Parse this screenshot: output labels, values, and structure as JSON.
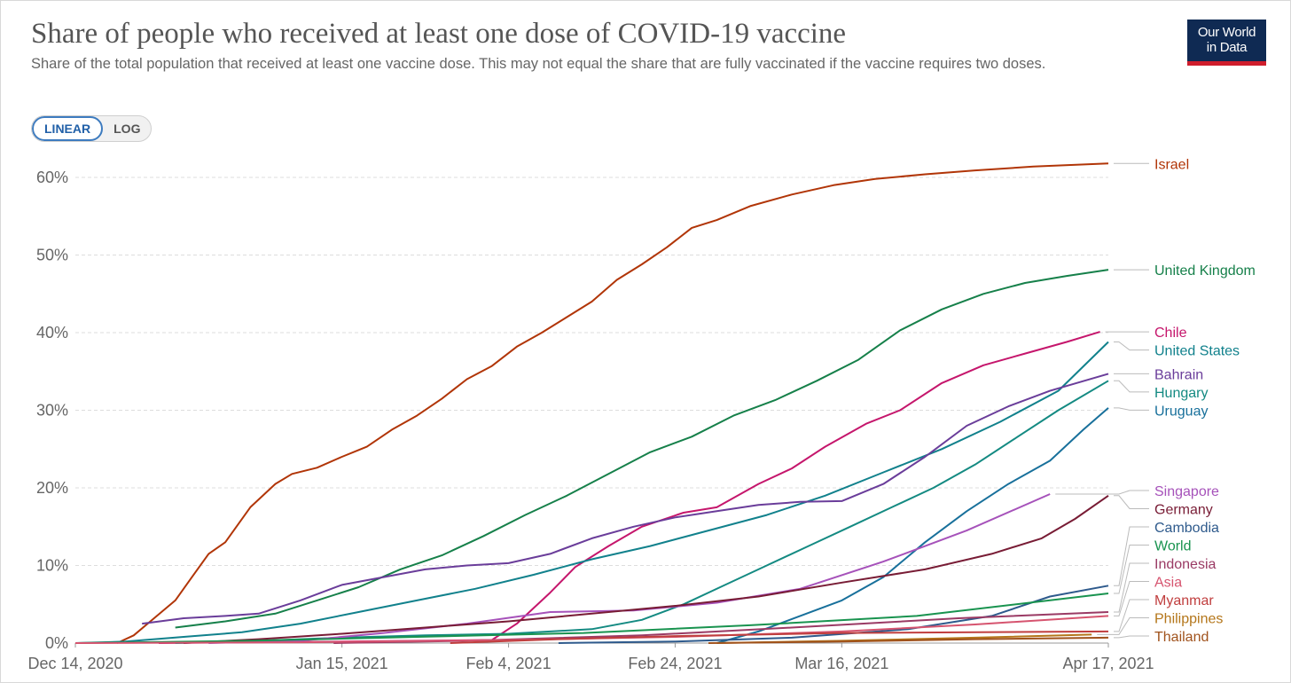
{
  "header": {
    "title": "Share of people who received at least one dose of COVID-19 vaccine",
    "subtitle": "Share of the total population that received at least one vaccine dose. This may not equal the share that are fully vaccinated if the vaccine requires two doses.",
    "logo_line1": "Our World",
    "logo_line2": "in Data"
  },
  "scale_toggle": {
    "linear_label": "LINEAR",
    "log_label": "LOG",
    "selected": "LINEAR"
  },
  "colors": {
    "grid": "#dddddd",
    "axis_text": "#666666",
    "title": "#555555",
    "logo_bg": "#0f2a53",
    "logo_accent": "#cf1d2c"
  },
  "chart_data": {
    "type": "line",
    "title": "Share of people who received at least one dose of COVID-19 vaccine",
    "xlabel": "",
    "ylabel": "",
    "x_range": [
      "2020-12-14",
      "2021-04-17"
    ],
    "ylim": [
      0,
      60
    ],
    "y_ticks": [
      0,
      10,
      20,
      30,
      40,
      50,
      60
    ],
    "y_tick_labels": [
      "0%",
      "10%",
      "20%",
      "30%",
      "40%",
      "50%",
      "60%"
    ],
    "x_ticks": [
      "2020-12-14",
      "2021-01-15",
      "2021-02-04",
      "2021-02-24",
      "2021-03-16",
      "2021-04-17"
    ],
    "x_tick_labels": [
      "Dec 14, 2020",
      "Jan 15, 2021",
      "Feb 4, 2021",
      "Feb 24, 2021",
      "Mar 16, 2021",
      "Apr 17, 2021"
    ],
    "grid": true,
    "legend": "right (labels at line ends)",
    "series": [
      {
        "name": "Israel",
        "color": "#b13507",
        "points": [
          [
            "2020-12-19",
            0
          ],
          [
            "2020-12-21",
            1
          ],
          [
            "2020-12-23",
            2.8
          ],
          [
            "2020-12-26",
            5.5
          ],
          [
            "2020-12-28",
            8.5
          ],
          [
            "2020-12-30",
            11.5
          ],
          [
            "2021-01-01",
            13
          ],
          [
            "2021-01-04",
            17.5
          ],
          [
            "2021-01-07",
            20.5
          ],
          [
            "2021-01-09",
            21.8
          ],
          [
            "2021-01-12",
            22.6
          ],
          [
            "2021-01-15",
            24
          ],
          [
            "2021-01-18",
            25.3
          ],
          [
            "2021-01-21",
            27.5
          ],
          [
            "2021-01-24",
            29.3
          ],
          [
            "2021-01-27",
            31.5
          ],
          [
            "2021-01-30",
            34
          ],
          [
            "2021-02-02",
            35.7
          ],
          [
            "2021-02-05",
            38.2
          ],
          [
            "2021-02-08",
            40
          ],
          [
            "2021-02-11",
            42
          ],
          [
            "2021-02-14",
            44
          ],
          [
            "2021-02-17",
            46.8
          ],
          [
            "2021-02-20",
            48.8
          ],
          [
            "2021-02-23",
            51
          ],
          [
            "2021-02-26",
            53.5
          ],
          [
            "2021-03-01",
            54.5
          ],
          [
            "2021-03-05",
            56.3
          ],
          [
            "2021-03-10",
            57.8
          ],
          [
            "2021-03-15",
            59
          ],
          [
            "2021-03-20",
            59.8
          ],
          [
            "2021-03-26",
            60.4
          ],
          [
            "2021-04-01",
            60.9
          ],
          [
            "2021-04-08",
            61.4
          ],
          [
            "2021-04-17",
            61.8
          ]
        ]
      },
      {
        "name": "United Kingdom",
        "color": "#16804a",
        "points": [
          [
            "2020-12-26",
            2
          ],
          [
            "2021-01-01",
            2.8
          ],
          [
            "2021-01-07",
            3.8
          ],
          [
            "2021-01-12",
            5.5
          ],
          [
            "2021-01-17",
            7.2
          ],
          [
            "2021-01-22",
            9.5
          ],
          [
            "2021-01-27",
            11.3
          ],
          [
            "2021-02-01",
            13.8
          ],
          [
            "2021-02-06",
            16.5
          ],
          [
            "2021-02-11",
            19
          ],
          [
            "2021-02-16",
            21.8
          ],
          [
            "2021-02-21",
            24.6
          ],
          [
            "2021-02-26",
            26.6
          ],
          [
            "2021-03-03",
            29.3
          ],
          [
            "2021-03-08",
            31.3
          ],
          [
            "2021-03-13",
            33.8
          ],
          [
            "2021-03-18",
            36.5
          ],
          [
            "2021-03-23",
            40.3
          ],
          [
            "2021-03-28",
            43
          ],
          [
            "2021-04-02",
            45
          ],
          [
            "2021-04-07",
            46.4
          ],
          [
            "2021-04-12",
            47.3
          ],
          [
            "2021-04-17",
            48.1
          ]
        ]
      },
      {
        "name": "Chile",
        "color": "#c5166c",
        "points": [
          [
            "2020-12-24",
            0
          ],
          [
            "2021-01-15",
            0.2
          ],
          [
            "2021-02-02",
            0.4
          ],
          [
            "2021-02-05",
            2.5
          ],
          [
            "2021-02-09",
            6.5
          ],
          [
            "2021-02-12",
            9.8
          ],
          [
            "2021-02-16",
            12.5
          ],
          [
            "2021-02-20",
            15
          ],
          [
            "2021-02-25",
            16.8
          ],
          [
            "2021-03-01",
            17.5
          ],
          [
            "2021-03-06",
            20.5
          ],
          [
            "2021-03-10",
            22.5
          ],
          [
            "2021-03-14",
            25.3
          ],
          [
            "2021-03-19",
            28.3
          ],
          [
            "2021-03-23",
            30
          ],
          [
            "2021-03-28",
            33.5
          ],
          [
            "2021-04-02",
            35.8
          ],
          [
            "2021-04-07",
            37.3
          ],
          [
            "2021-04-12",
            38.8
          ],
          [
            "2021-04-16",
            40.1
          ]
        ]
      },
      {
        "name": "United States",
        "color": "#11818c",
        "points": [
          [
            "2020-12-14",
            0
          ],
          [
            "2020-12-20",
            0.2
          ],
          [
            "2020-12-27",
            0.8
          ],
          [
            "2021-01-03",
            1.4
          ],
          [
            "2021-01-10",
            2.5
          ],
          [
            "2021-01-17",
            4
          ],
          [
            "2021-01-24",
            5.5
          ],
          [
            "2021-01-31",
            7
          ],
          [
            "2021-02-07",
            8.8
          ],
          [
            "2021-02-14",
            10.8
          ],
          [
            "2021-02-21",
            12.5
          ],
          [
            "2021-02-28",
            14.5
          ],
          [
            "2021-03-07",
            16.5
          ],
          [
            "2021-03-14",
            19
          ],
          [
            "2021-03-21",
            22
          ],
          [
            "2021-03-28",
            25
          ],
          [
            "2021-04-04",
            28.5
          ],
          [
            "2021-04-11",
            32.5
          ],
          [
            "2021-04-17",
            38.8
          ]
        ]
      },
      {
        "name": "Bahrain",
        "color": "#6a3d9a",
        "points": [
          [
            "2020-12-22",
            2.5
          ],
          [
            "2020-12-27",
            3.2
          ],
          [
            "2021-01-01",
            3.5
          ],
          [
            "2021-01-05",
            3.8
          ],
          [
            "2021-01-10",
            5.5
          ],
          [
            "2021-01-15",
            7.5
          ],
          [
            "2021-01-20",
            8.5
          ],
          [
            "2021-01-25",
            9.5
          ],
          [
            "2021-01-30",
            10
          ],
          [
            "2021-02-04",
            10.3
          ],
          [
            "2021-02-09",
            11.5
          ],
          [
            "2021-02-14",
            13.5
          ],
          [
            "2021-02-19",
            15
          ],
          [
            "2021-02-24",
            16.2
          ],
          [
            "2021-03-01",
            17
          ],
          [
            "2021-03-06",
            17.8
          ],
          [
            "2021-03-11",
            18.2
          ],
          [
            "2021-03-16",
            18.3
          ],
          [
            "2021-03-21",
            20.5
          ],
          [
            "2021-03-26",
            24
          ],
          [
            "2021-03-31",
            28
          ],
          [
            "2021-04-05",
            30.5
          ],
          [
            "2021-04-10",
            32.5
          ],
          [
            "2021-04-17",
            34.7
          ]
        ]
      },
      {
        "name": "Hungary",
        "color": "#148a82",
        "points": [
          [
            "2020-12-26",
            0
          ],
          [
            "2021-01-05",
            0.3
          ],
          [
            "2021-01-15",
            0.7
          ],
          [
            "2021-01-25",
            1
          ],
          [
            "2021-02-04",
            1.2
          ],
          [
            "2021-02-14",
            1.8
          ],
          [
            "2021-02-20",
            3
          ],
          [
            "2021-02-25",
            5
          ],
          [
            "2021-03-02",
            7.5
          ],
          [
            "2021-03-07",
            10
          ],
          [
            "2021-03-12",
            12.5
          ],
          [
            "2021-03-17",
            15
          ],
          [
            "2021-03-22",
            17.5
          ],
          [
            "2021-03-27",
            20
          ],
          [
            "2021-04-01",
            23
          ],
          [
            "2021-04-06",
            26.5
          ],
          [
            "2021-04-11",
            30
          ],
          [
            "2021-04-17",
            33.8
          ]
        ]
      },
      {
        "name": "Uruguay",
        "color": "#18709b",
        "points": [
          [
            "2021-03-01",
            0
          ],
          [
            "2021-03-06",
            1.5
          ],
          [
            "2021-03-11",
            3.5
          ],
          [
            "2021-03-16",
            5.5
          ],
          [
            "2021-03-21",
            8.5
          ],
          [
            "2021-03-26",
            13
          ],
          [
            "2021-03-31",
            17
          ],
          [
            "2021-04-05",
            20.5
          ],
          [
            "2021-04-10",
            23.5
          ],
          [
            "2021-04-14",
            27.5
          ],
          [
            "2021-04-17",
            30.3
          ]
        ]
      },
      {
        "name": "Singapore",
        "color": "#a652ba",
        "points": [
          [
            "2020-12-30",
            0
          ],
          [
            "2021-01-10",
            0.3
          ],
          [
            "2021-01-20",
            1.3
          ],
          [
            "2021-01-30",
            2.5
          ],
          [
            "2021-02-09",
            4
          ],
          [
            "2021-02-19",
            4.2
          ],
          [
            "2021-03-01",
            5.2
          ],
          [
            "2021-03-11",
            7
          ],
          [
            "2021-03-21",
            10.5
          ],
          [
            "2021-03-31",
            14.5
          ],
          [
            "2021-04-10",
            19.2
          ]
        ]
      },
      {
        "name": "Germany",
        "color": "#781c35",
        "points": [
          [
            "2020-12-27",
            0
          ],
          [
            "2021-01-05",
            0.5
          ],
          [
            "2021-01-15",
            1.2
          ],
          [
            "2021-01-25",
            2
          ],
          [
            "2021-02-04",
            2.8
          ],
          [
            "2021-02-14",
            3.8
          ],
          [
            "2021-02-24",
            4.8
          ],
          [
            "2021-03-06",
            6
          ],
          [
            "2021-03-16",
            7.8
          ],
          [
            "2021-03-26",
            9.5
          ],
          [
            "2021-04-03",
            11.5
          ],
          [
            "2021-04-09",
            13.5
          ],
          [
            "2021-04-13",
            16
          ],
          [
            "2021-04-17",
            19
          ]
        ]
      },
      {
        "name": "Cambodia",
        "color": "#2e5a8c",
        "points": [
          [
            "2021-02-10",
            0
          ],
          [
            "2021-02-24",
            0.2
          ],
          [
            "2021-03-10",
            0.7
          ],
          [
            "2021-03-24",
            1.8
          ],
          [
            "2021-04-03",
            3.5
          ],
          [
            "2021-04-10",
            6
          ],
          [
            "2021-04-17",
            7.4
          ]
        ]
      },
      {
        "name": "World",
        "color": "#19934f",
        "points": [
          [
            "2020-12-14",
            0
          ],
          [
            "2021-01-04",
            0.3
          ],
          [
            "2021-01-24",
            0.8
          ],
          [
            "2021-02-13",
            1.3
          ],
          [
            "2021-03-05",
            2.3
          ],
          [
            "2021-03-25",
            3.5
          ],
          [
            "2021-04-17",
            6.4
          ]
        ]
      },
      {
        "name": "Indonesia",
        "color": "#9a3a64",
        "points": [
          [
            "2021-01-14",
            0
          ],
          [
            "2021-01-30",
            0.3
          ],
          [
            "2021-02-20",
            1
          ],
          [
            "2021-03-10",
            2
          ],
          [
            "2021-03-30",
            3.2
          ],
          [
            "2021-04-17",
            4
          ]
        ]
      },
      {
        "name": "Asia",
        "color": "#d6546f",
        "points": [
          [
            "2020-12-14",
            0
          ],
          [
            "2021-01-10",
            0.1
          ],
          [
            "2021-02-04",
            0.4
          ],
          [
            "2021-02-24",
            0.8
          ],
          [
            "2021-03-16",
            1.5
          ],
          [
            "2021-04-01",
            2.4
          ],
          [
            "2021-04-17",
            3.5
          ]
        ]
      },
      {
        "name": "Myanmar",
        "color": "#c03e3e",
        "points": [
          [
            "2021-01-28",
            0
          ],
          [
            "2021-02-10",
            0.5
          ],
          [
            "2021-02-24",
            0.9
          ],
          [
            "2021-03-16",
            1.3
          ],
          [
            "2021-04-17",
            1.5
          ]
        ]
      },
      {
        "name": "Philippines",
        "color": "#b4761a",
        "points": [
          [
            "2021-03-01",
            0
          ],
          [
            "2021-03-16",
            0.3
          ],
          [
            "2021-04-01",
            0.7
          ],
          [
            "2021-04-15",
            1.1
          ]
        ]
      },
      {
        "name": "Thailand",
        "color": "#a0521c",
        "points": [
          [
            "2021-02-28",
            0
          ],
          [
            "2021-03-16",
            0.2
          ],
          [
            "2021-04-01",
            0.5
          ],
          [
            "2021-04-17",
            0.7
          ]
        ]
      }
    ]
  }
}
